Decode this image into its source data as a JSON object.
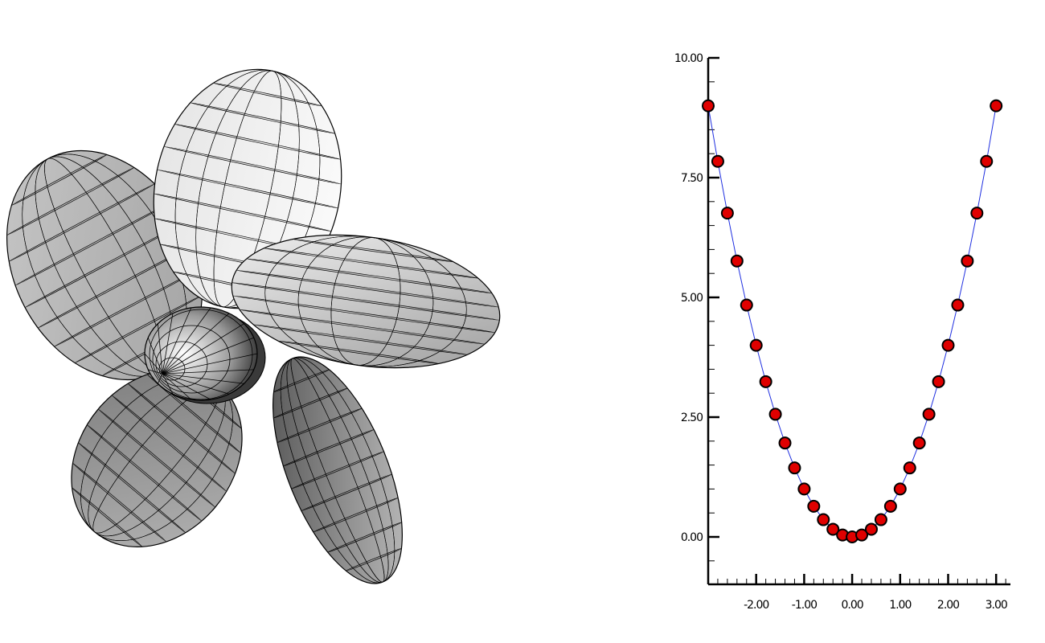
{
  "scene": {
    "object": "five-blade propeller wireframe",
    "blade_count": 5
  },
  "chart_data": {
    "type": "line",
    "title": "",
    "xlabel": "",
    "ylabel": "",
    "xlim": [
      -3.0,
      3.3
    ],
    "ylim": [
      -1.0,
      10.0
    ],
    "grid": false,
    "x_ticks": [
      "-2.00",
      "-1.00",
      "0.00",
      "1.00",
      "2.00",
      "3.00"
    ],
    "x_tick_values": [
      -2,
      -1,
      0,
      1,
      2,
      3
    ],
    "y_ticks": [
      "0.00",
      "2.50",
      "5.00",
      "7.50",
      "10.00"
    ],
    "y_tick_values": [
      0,
      2.5,
      5,
      7.5,
      10
    ],
    "series": [
      {
        "line_color": "#1f2fe0",
        "marker_color": "#e00000",
        "marker_edge": "#000000",
        "x": [
          -3.0,
          -2.8,
          -2.6,
          -2.4,
          -2.2,
          -2.0,
          -1.8,
          -1.6,
          -1.4,
          -1.2,
          -1.0,
          -0.8,
          -0.6,
          -0.4,
          -0.2,
          0.0,
          0.2,
          0.4,
          0.6,
          0.8,
          1.0,
          1.2,
          1.4,
          1.6,
          1.8,
          2.0,
          2.2,
          2.4,
          2.6,
          2.8,
          3.0
        ],
        "y": [
          9.0,
          7.84,
          6.76,
          5.76,
          4.84,
          4.0,
          3.24,
          2.56,
          1.96,
          1.44,
          1.0,
          0.64,
          0.36,
          0.16,
          0.04,
          0.0,
          0.04,
          0.16,
          0.36,
          0.64,
          1.0,
          1.44,
          1.96,
          2.56,
          3.24,
          4.0,
          4.84,
          5.76,
          6.76,
          7.84,
          9.0
        ]
      }
    ]
  }
}
